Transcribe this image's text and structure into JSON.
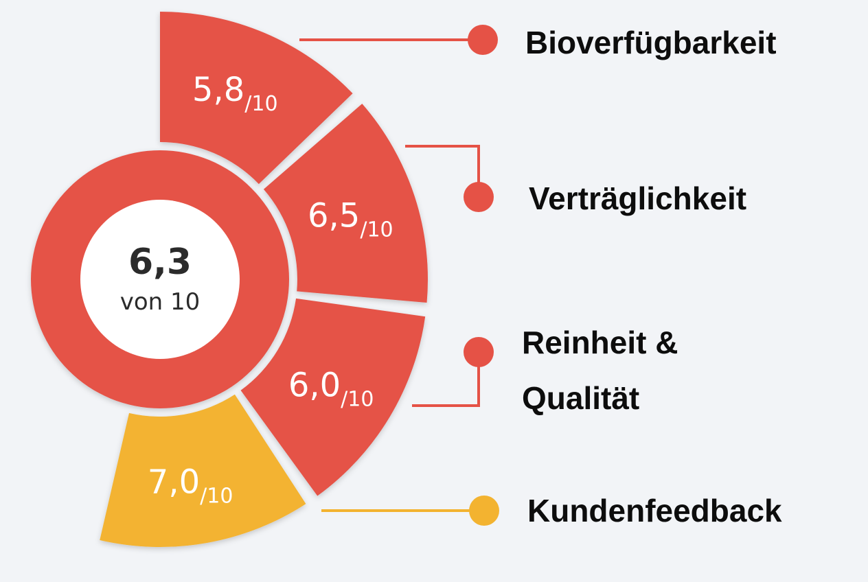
{
  "chart_data": {
    "type": "pie",
    "overall": {
      "score": "6,3",
      "caption": "von 10"
    },
    "denominator": "/10",
    "categories": [
      "Bioverfügbarkeit",
      "Verträglichkeit",
      "Reinheit & Qualität",
      "Kundenfeedback"
    ],
    "label_lines": [
      [
        "Bioverfügbarkeit"
      ],
      [
        "Verträglichkeit"
      ],
      [
        "Reinheit &",
        "Qualität"
      ],
      [
        "Kundenfeedback"
      ]
    ],
    "values": [
      5.8,
      6.5,
      6.0,
      7.0
    ],
    "value_labels": [
      "5,8",
      "6,5",
      "6,0",
      "7,0"
    ],
    "max": 10,
    "colors": [
      "#e55246",
      "#e55246",
      "#e55246",
      "#f3b330"
    ],
    "ring_color": "#e55246",
    "center_color": "#ffffff",
    "grid": false,
    "legend": "right"
  }
}
